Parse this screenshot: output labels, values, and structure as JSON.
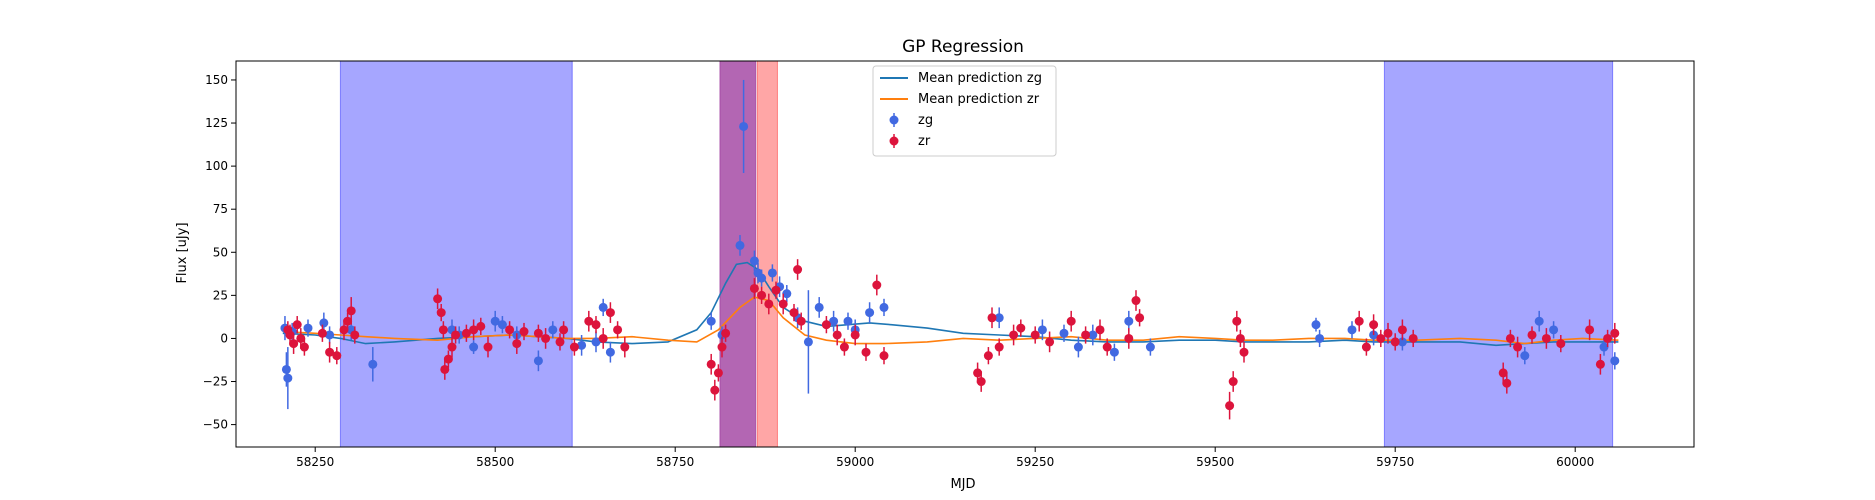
{
  "chart_data": {
    "type": "scatter",
    "title": "GP Regression",
    "xlabel": "MJD",
    "ylabel": "Flux [uJy]",
    "xlim": [
      58140,
      60165
    ],
    "ylim": [
      -63,
      161
    ],
    "xticks": [
      58250,
      58500,
      58750,
      59000,
      59250,
      59500,
      59750,
      60000
    ],
    "yticks": [
      -50,
      -25,
      0,
      25,
      50,
      75,
      100,
      125,
      150
    ],
    "grid": false,
    "legend_position": "top-center",
    "shaded_regions": [
      {
        "x0": 58285,
        "x1": 58607,
        "color": "#0000ff",
        "opacity": 0.35
      },
      {
        "x0": 58812,
        "x1": 58862,
        "color": "#800080",
        "opacity": 0.6
      },
      {
        "x0": 58864,
        "x1": 58892,
        "color": "#ff0000",
        "opacity": 0.35
      },
      {
        "x0": 59735,
        "x1": 60052,
        "color": "#0000ff",
        "opacity": 0.35
      }
    ],
    "series": [
      {
        "name": "Mean prediction zg",
        "kind": "line",
        "color": "#1f77b4",
        "x": [
          58205,
          58250,
          58285,
          58320,
          58360,
          58420,
          58470,
          58520,
          58560,
          58600,
          58640,
          58690,
          58740,
          58780,
          58800,
          58820,
          58835,
          58850,
          58865,
          58880,
          58900,
          58930,
          58960,
          58990,
          59020,
          59050,
          59100,
          59150,
          59200,
          59250,
          59300,
          59350,
          59400,
          59450,
          59500,
          59540,
          59580,
          59630,
          59680,
          59720,
          59780,
          59840,
          59890,
          59930,
          59970,
          60010,
          60060
        ],
        "y": [
          3,
          2,
          0,
          -3,
          -2,
          0,
          1,
          2,
          1,
          0,
          -2,
          -3,
          -2,
          5,
          15,
          32,
          43,
          44,
          40,
          30,
          18,
          10,
          7,
          8,
          9,
          8,
          6,
          3,
          2,
          1,
          -1,
          -2,
          -2,
          -1,
          -1,
          -2,
          -2,
          -2,
          -1,
          -2,
          -2,
          -2,
          -4,
          -3,
          -2,
          -2,
          -2
        ]
      },
      {
        "name": "Mean prediction zr",
        "kind": "line",
        "color": "#ff7f0e",
        "x": [
          58205,
          58250,
          58285,
          58320,
          58360,
          58420,
          58470,
          58520,
          58560,
          58600,
          58640,
          58690,
          58740,
          58780,
          58810,
          58840,
          58860,
          58880,
          58900,
          58930,
          58960,
          59000,
          59040,
          59100,
          59150,
          59200,
          59250,
          59300,
          59350,
          59400,
          59450,
          59500,
          59540,
          59580,
          59630,
          59680,
          59720,
          59780,
          59840,
          59890,
          59930,
          59970,
          60010,
          60060
        ],
        "y": [
          4,
          3,
          2,
          1,
          0,
          -1,
          1,
          2,
          1,
          0,
          0,
          1,
          -1,
          -2,
          5,
          18,
          24,
          22,
          12,
          2,
          -1,
          -3,
          -3,
          -2,
          0,
          -1,
          0,
          1,
          -1,
          -1,
          1,
          0,
          -1,
          -1,
          0,
          0,
          -1,
          -1,
          0,
          -1,
          -3,
          -1,
          0,
          -1
        ]
      },
      {
        "name": "zg",
        "kind": "points",
        "color": "#4169e1",
        "points": [
          [
            58208,
            6,
            7
          ],
          [
            58210,
            -18,
            10
          ],
          [
            58212,
            -23,
            18
          ],
          [
            58218,
            4,
            5
          ],
          [
            58240,
            6,
            5
          ],
          [
            58262,
            9,
            6
          ],
          [
            58270,
            2,
            5
          ],
          [
            58300,
            5,
            6
          ],
          [
            58330,
            -15,
            10
          ],
          [
            58440,
            5,
            6
          ],
          [
            58450,
            2,
            5
          ],
          [
            58470,
            -5,
            4
          ],
          [
            58500,
            10,
            6
          ],
          [
            58510,
            8,
            5
          ],
          [
            58530,
            2,
            5
          ],
          [
            58560,
            -13,
            6
          ],
          [
            58580,
            5,
            5
          ],
          [
            58620,
            -4,
            6
          ],
          [
            58640,
            -2,
            6
          ],
          [
            58650,
            18,
            5
          ],
          [
            58660,
            -8,
            6
          ],
          [
            58800,
            10,
            5
          ],
          [
            58815,
            2,
            5
          ],
          [
            58840,
            54,
            6
          ],
          [
            58845,
            123,
            27
          ],
          [
            58860,
            45,
            6
          ],
          [
            58865,
            38,
            6
          ],
          [
            58870,
            35,
            5
          ],
          [
            58885,
            38,
            5
          ],
          [
            58895,
            30,
            6
          ],
          [
            58905,
            26,
            5
          ],
          [
            58920,
            12,
            6
          ],
          [
            58935,
            -2,
            30
          ],
          [
            58950,
            18,
            6
          ],
          [
            58970,
            10,
            6
          ],
          [
            58990,
            10,
            5
          ],
          [
            59000,
            5,
            6
          ],
          [
            59020,
            15,
            6
          ],
          [
            59040,
            18,
            5
          ],
          [
            59200,
            12,
            6
          ],
          [
            59260,
            5,
            6
          ],
          [
            59290,
            3,
            5
          ],
          [
            59310,
            -5,
            6
          ],
          [
            59330,
            2,
            6
          ],
          [
            59360,
            -8,
            5
          ],
          [
            59380,
            10,
            6
          ],
          [
            59410,
            -5,
            5
          ],
          [
            59640,
            8,
            4
          ],
          [
            59645,
            0,
            5
          ],
          [
            59690,
            5,
            5
          ],
          [
            59720,
            2,
            6
          ],
          [
            59760,
            -2,
            5
          ],
          [
            59930,
            -10,
            5
          ],
          [
            59950,
            10,
            6
          ],
          [
            59970,
            5,
            5
          ],
          [
            60040,
            -5,
            5
          ],
          [
            60055,
            -13,
            5
          ]
        ]
      },
      {
        "name": "zr",
        "kind": "points",
        "color": "#dc143c",
        "points": [
          [
            58212,
            5,
            5
          ],
          [
            58215,
            2,
            6
          ],
          [
            58220,
            -3,
            6
          ],
          [
            58225,
            8,
            5
          ],
          [
            58230,
            0,
            6
          ],
          [
            58235,
            -5,
            5
          ],
          [
            58260,
            3,
            5
          ],
          [
            58270,
            -8,
            6
          ],
          [
            58280,
            -10,
            5
          ],
          [
            58290,
            5,
            6
          ],
          [
            58295,
            10,
            5
          ],
          [
            58300,
            16,
            8
          ],
          [
            58305,
            2,
            5
          ],
          [
            58420,
            23,
            6
          ],
          [
            58425,
            15,
            5
          ],
          [
            58428,
            5,
            5
          ],
          [
            58430,
            -18,
            6
          ],
          [
            58435,
            -12,
            5
          ],
          [
            58440,
            -5,
            6
          ],
          [
            58445,
            2,
            5
          ],
          [
            58460,
            3,
            5
          ],
          [
            58470,
            5,
            6
          ],
          [
            58480,
            7,
            5
          ],
          [
            58490,
            -5,
            6
          ],
          [
            58520,
            5,
            5
          ],
          [
            58530,
            -3,
            6
          ],
          [
            58540,
            4,
            5
          ],
          [
            58560,
            3,
            5
          ],
          [
            58570,
            0,
            6
          ],
          [
            58590,
            -2,
            5
          ],
          [
            58595,
            5,
            5
          ],
          [
            58610,
            -5,
            5
          ],
          [
            58630,
            10,
            6
          ],
          [
            58640,
            8,
            5
          ],
          [
            58650,
            0,
            6
          ],
          [
            58660,
            15,
            6
          ],
          [
            58670,
            5,
            5
          ],
          [
            58680,
            -5,
            6
          ],
          [
            58800,
            -15,
            6
          ],
          [
            58805,
            -30,
            6
          ],
          [
            58810,
            -20,
            5
          ],
          [
            58815,
            -5,
            6
          ],
          [
            58820,
            3,
            5
          ],
          [
            58860,
            29,
            6
          ],
          [
            58870,
            25,
            5
          ],
          [
            58880,
            20,
            6
          ],
          [
            58890,
            28,
            5
          ],
          [
            58900,
            20,
            6
          ],
          [
            58915,
            15,
            5
          ],
          [
            58920,
            40,
            6
          ],
          [
            58925,
            10,
            5
          ],
          [
            58960,
            8,
            5
          ],
          [
            58975,
            2,
            6
          ],
          [
            58985,
            -5,
            5
          ],
          [
            59000,
            2,
            6
          ],
          [
            59015,
            -8,
            5
          ],
          [
            59030,
            31,
            6
          ],
          [
            59040,
            -10,
            5
          ],
          [
            59170,
            -20,
            6
          ],
          [
            59175,
            -25,
            6
          ],
          [
            59185,
            -10,
            5
          ],
          [
            59190,
            12,
            6
          ],
          [
            59200,
            -5,
            5
          ],
          [
            59220,
            2,
            6
          ],
          [
            59230,
            6,
            5
          ],
          [
            59250,
            2,
            5
          ],
          [
            59270,
            -2,
            6
          ],
          [
            59300,
            10,
            6
          ],
          [
            59320,
            2,
            5
          ],
          [
            59340,
            5,
            6
          ],
          [
            59350,
            -5,
            5
          ],
          [
            59380,
            0,
            6
          ],
          [
            59390,
            22,
            6
          ],
          [
            59395,
            12,
            5
          ],
          [
            59520,
            -39,
            8
          ],
          [
            59525,
            -25,
            6
          ],
          [
            59530,
            10,
            6
          ],
          [
            59535,
            0,
            5
          ],
          [
            59540,
            -8,
            6
          ],
          [
            59700,
            10,
            6
          ],
          [
            59710,
            -5,
            5
          ],
          [
            59720,
            8,
            6
          ],
          [
            59730,
            0,
            5
          ],
          [
            59740,
            3,
            6
          ],
          [
            59750,
            -2,
            5
          ],
          [
            59760,
            5,
            6
          ],
          [
            59775,
            0,
            5
          ],
          [
            59900,
            -20,
            6
          ],
          [
            59905,
            -26,
            6
          ],
          [
            59910,
            0,
            5
          ],
          [
            59920,
            -5,
            6
          ],
          [
            59940,
            2,
            5
          ],
          [
            59960,
            0,
            6
          ],
          [
            59980,
            -3,
            5
          ],
          [
            60020,
            5,
            6
          ],
          [
            60035,
            -15,
            6
          ],
          [
            60045,
            0,
            5
          ],
          [
            60055,
            3,
            6
          ]
        ]
      }
    ]
  }
}
